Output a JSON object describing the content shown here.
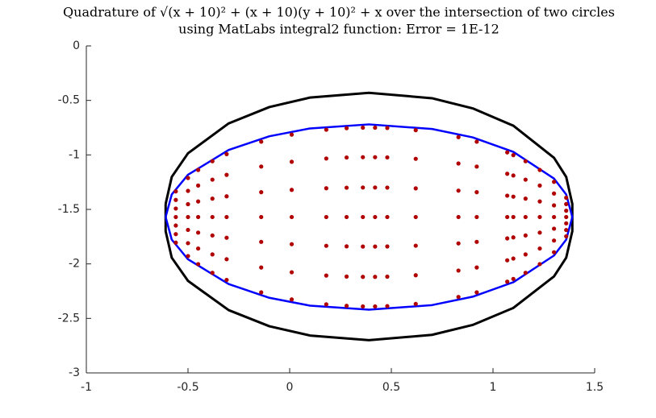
{
  "chart_data": {
    "type": "scatter",
    "title": [
      "Quadrature of √(x + 10)² + (x + 10)(y + 10)² + x over the intersection of two circles",
      "using MatLabs integral2 function: Error = 1E-12"
    ],
    "xlim": [
      -1,
      1.5
    ],
    "xticks": [
      -1,
      -0.5,
      0,
      0.5,
      1,
      1.5
    ],
    "ylim": [
      -3,
      0
    ],
    "yticks": [
      0,
      -0.5,
      -1,
      -1.5,
      -2,
      -2.5,
      -3
    ],
    "series": [
      {
        "mode": "line",
        "color": "#000000",
        "x": [
          -0.61,
          -0.58,
          -0.5,
          -0.3,
          -0.1,
          0.1,
          0.39,
          0.7,
          0.9,
          1.1,
          1.3,
          1.36,
          1.39,
          1.39,
          1.36,
          1.3,
          1.1,
          0.9,
          0.7,
          0.39,
          0.1,
          -0.1,
          -0.3,
          -0.5,
          -0.58,
          -0.61,
          -0.61
        ],
        "y": [
          -1.45,
          -1.202,
          -0.985,
          -0.711,
          -0.561,
          -0.474,
          -0.43,
          -0.48,
          -0.573,
          -0.732,
          -1.027,
          -1.202,
          -1.45,
          -1.7,
          -1.943,
          -2.115,
          -2.404,
          -2.56,
          -2.651,
          -2.7,
          -2.657,
          -2.572,
          -2.424,
          -2.156,
          -1.943,
          -1.7,
          -1.45
        ]
      },
      {
        "mode": "line",
        "color": "#0000ff",
        "x": [
          -0.61,
          -0.58,
          -0.5,
          -0.3,
          -0.1,
          0.1,
          0.39,
          0.7,
          0.9,
          1.1,
          1.3,
          1.36,
          1.39,
          1.36,
          1.3,
          1.1,
          0.9,
          0.7,
          0.39,
          0.1,
          -0.1,
          -0.3,
          -0.5,
          -0.58,
          -0.61
        ],
        "y": [
          -1.57,
          -1.363,
          -1.182,
          -0.955,
          -0.829,
          -0.757,
          -0.72,
          -0.762,
          -0.839,
          -0.972,
          -1.217,
          -1.363,
          -1.57,
          -1.777,
          -1.923,
          -2.168,
          -2.301,
          -2.378,
          -2.42,
          -2.383,
          -2.311,
          -2.185,
          -1.958,
          -1.777,
          -1.57
        ]
      },
      {
        "mode": "markers",
        "color": "#b00000",
        "x": [
          -0.56,
          -0.56,
          -0.56,
          -0.56,
          -0.56,
          -0.56,
          -0.56,
          -0.5,
          -0.5,
          -0.5,
          -0.5,
          -0.5,
          -0.5,
          -0.5,
          -0.45,
          -0.45,
          -0.45,
          -0.45,
          -0.45,
          -0.45,
          -0.45,
          -0.38,
          -0.38,
          -0.38,
          -0.38,
          -0.38,
          -0.38,
          -0.38,
          -0.31,
          -0.31,
          -0.31,
          -0.31,
          -0.31,
          -0.31,
          -0.31,
          -0.14,
          -0.14,
          -0.14,
          -0.14,
          -0.14,
          -0.14,
          -0.14,
          0.01,
          0.01,
          0.01,
          0.01,
          0.01,
          0.01,
          0.01,
          0.18,
          0.18,
          0.18,
          0.18,
          0.18,
          0.18,
          0.18,
          0.28,
          0.28,
          0.28,
          0.28,
          0.28,
          0.28,
          0.28,
          0.36,
          0.36,
          0.36,
          0.36,
          0.36,
          0.36,
          0.36,
          0.42,
          0.42,
          0.42,
          0.42,
          0.42,
          0.42,
          0.42,
          0.48,
          0.48,
          0.48,
          0.48,
          0.48,
          0.48,
          0.48,
          0.62,
          0.62,
          0.62,
          0.62,
          0.62,
          0.62,
          0.62,
          0.83,
          0.83,
          0.83,
          0.83,
          0.83,
          0.83,
          0.83,
          0.92,
          0.92,
          0.92,
          0.92,
          0.92,
          0.92,
          0.92,
          1.07,
          1.07,
          1.07,
          1.07,
          1.07,
          1.07,
          1.07,
          1.1,
          1.1,
          1.1,
          1.1,
          1.1,
          1.1,
          1.1,
          1.16,
          1.16,
          1.16,
          1.16,
          1.16,
          1.16,
          1.16,
          1.23,
          1.23,
          1.23,
          1.23,
          1.23,
          1.23,
          1.23,
          1.3,
          1.3,
          1.3,
          1.3,
          1.3,
          1.3,
          1.3,
          1.36,
          1.36,
          1.36,
          1.36,
          1.36,
          1.36,
          1.36
        ],
        "y": [
          -1.335,
          -1.413,
          -1.492,
          -1.57,
          -1.648,
          -1.727,
          -1.805,
          -1.212,
          -1.33,
          -1.452,
          -1.57,
          -1.688,
          -1.81,
          -1.928,
          -1.138,
          -1.281,
          -1.427,
          -1.57,
          -1.713,
          -1.859,
          -2.002,
          -1.058,
          -1.227,
          -1.401,
          -1.57,
          -1.739,
          -1.913,
          -2.082,
          -0.993,
          -1.183,
          -1.38,
          -1.57,
          -1.76,
          -1.957,
          -2.147,
          -0.879,
          -1.107,
          -1.342,
          -1.57,
          -1.798,
          -2.033,
          -2.261,
          -0.814,
          -1.063,
          -1.321,
          -1.57,
          -1.819,
          -2.077,
          -2.326,
          -0.769,
          -1.033,
          -1.306,
          -1.57,
          -1.834,
          -2.107,
          -2.371,
          -0.755,
          -1.024,
          -1.301,
          -1.57,
          -1.839,
          -2.116,
          -2.385,
          -0.75,
          -1.021,
          -1.299,
          -1.57,
          -1.841,
          -2.119,
          -2.39,
          -0.75,
          -1.021,
          -1.299,
          -1.57,
          -1.841,
          -2.119,
          -2.39,
          -0.753,
          -1.023,
          -1.3,
          -1.57,
          -1.84,
          -2.117,
          -2.387,
          -0.773,
          -1.036,
          -1.307,
          -1.57,
          -1.833,
          -2.104,
          -2.367,
          -0.837,
          -1.079,
          -1.328,
          -1.57,
          -1.812,
          -2.061,
          -2.303,
          -0.879,
          -1.107,
          -1.342,
          -1.57,
          -1.798,
          -2.033,
          -2.261,
          -0.977,
          -1.173,
          -1.374,
          -1.57,
          -1.766,
          -1.967,
          -2.163,
          -1.002,
          -1.189,
          -1.383,
          -1.57,
          -1.757,
          -1.951,
          -2.138,
          -1.058,
          -1.227,
          -1.401,
          -1.57,
          -1.739,
          -1.913,
          -2.082,
          -1.138,
          -1.281,
          -1.427,
          -1.57,
          -1.713,
          -1.859,
          -2.002,
          -1.247,
          -1.354,
          -1.463,
          -1.57,
          -1.677,
          -1.786,
          -1.893,
          -1.393,
          -1.451,
          -1.512,
          -1.57,
          -1.628,
          -1.689,
          -1.747
        ]
      }
    ]
  }
}
